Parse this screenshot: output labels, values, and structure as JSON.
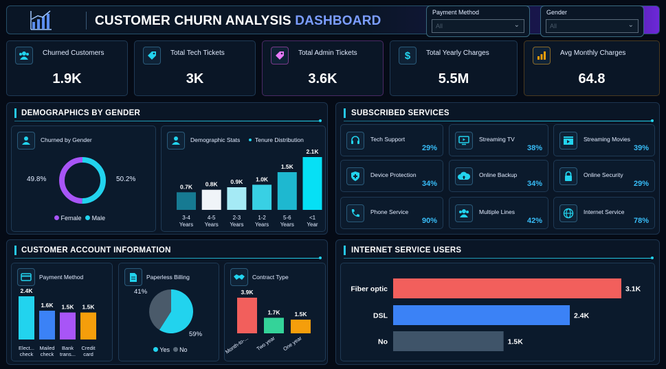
{
  "header": {
    "title_main": "CUSTOMER CHURN ANALYSIS",
    "title_accent": "DASHBOARD",
    "icon": "chart-growth-icon",
    "slicers": [
      {
        "label": "Payment Method",
        "value": "All"
      },
      {
        "label": "Gender",
        "value": "All"
      }
    ]
  },
  "kpis": [
    {
      "label": "Churned Customers",
      "value": "1.9K",
      "icon": "users-icon",
      "accent": "#22d3ee"
    },
    {
      "label": "Total Tech Tickets",
      "value": "3K",
      "icon": "tag-icon",
      "accent": "#22d3ee"
    },
    {
      "label": "Total Admin Tickets",
      "value": "3.6K",
      "icon": "tag-icon",
      "accent": "#e879f9"
    },
    {
      "label": "Total Yearly Charges",
      "value": "5.5M",
      "icon": "dollar-icon",
      "accent": "#22d3ee"
    },
    {
      "label": "Avg Monthly Charges",
      "value": "64.8",
      "icon": "bar-chart-icon",
      "accent": "#f59e0b"
    }
  ],
  "demographics": {
    "title": "DEMOGRAPHICS BY GENDER",
    "gender_card": {
      "title": "Churned by Gender",
      "female_pct": "49.8%",
      "male_pct": "50.2%",
      "legend": [
        "Female",
        "Male"
      ],
      "colors": {
        "female": "#a855f7",
        "male": "#22d3ee"
      }
    },
    "tenure_card": {
      "title": "Demographic Stats",
      "subtitle": "Tenure Distribution"
    }
  },
  "services": {
    "title": "SUBSCRIBED SERVICES",
    "items": [
      {
        "name": "Tech Support",
        "pct": "29%",
        "icon": "headset-icon"
      },
      {
        "name": "Streaming TV",
        "pct": "38%",
        "icon": "tv-icon"
      },
      {
        "name": "Streaming Movies",
        "pct": "39%",
        "icon": "film-icon"
      },
      {
        "name": "Device Protection",
        "pct": "34%",
        "icon": "shield-icon"
      },
      {
        "name": "Online Backup",
        "pct": "34%",
        "icon": "cloud-upload-icon"
      },
      {
        "name": "Online Security",
        "pct": "29%",
        "icon": "lock-icon"
      },
      {
        "name": "Phone Service",
        "pct": "90%",
        "icon": "phone-icon"
      },
      {
        "name": "Multiple Lines",
        "pct": "42%",
        "icon": "users-icon"
      },
      {
        "name": "Internet Service",
        "pct": "78%",
        "icon": "globe-icon"
      }
    ]
  },
  "account": {
    "title": "CUSTOMER ACCOUNT INFORMATION",
    "payment_card": {
      "title": "Payment Method"
    },
    "billing_card": {
      "title": "Paperless Billing",
      "yes_pct": "59%",
      "no_pct": "41%",
      "legend": [
        "Yes",
        "No"
      ]
    },
    "contract_card": {
      "title": "Contract Type"
    }
  },
  "internet": {
    "title": "INTERNET SERVICE USERS"
  },
  "chart_data": [
    {
      "type": "bar",
      "name": "tenure",
      "categories": [
        "3-4 Years",
        "4-5 Years",
        "2-3 Years",
        "1-2 Years",
        "5-6 Years",
        "<1 Year"
      ],
      "values": [
        0.7,
        0.8,
        0.9,
        1.0,
        1.5,
        2.1
      ],
      "labels": [
        "0.7K",
        "0.8K",
        "0.9K",
        "1.0K",
        "1.5K",
        "2.1K"
      ],
      "colors": [
        "#167a92",
        "#f0f4f8",
        "#a5eaf5",
        "#38d0e4",
        "#1eb8d0",
        "#06e0f5"
      ]
    },
    {
      "type": "pie",
      "name": "gender",
      "categories": [
        "Female",
        "Male"
      ],
      "values": [
        49.8,
        50.2
      ]
    },
    {
      "type": "bar",
      "name": "payment",
      "categories": [
        "Elect... check",
        "Mailed check",
        "Bank trans...",
        "Credit card"
      ],
      "values": [
        2.4,
        1.6,
        1.5,
        1.5
      ],
      "labels": [
        "2.4K",
        "1.6K",
        "1.5K",
        "1.5K"
      ],
      "colors": [
        "#22d3ee",
        "#3b82f6",
        "#a855f7",
        "#f59e0b"
      ]
    },
    {
      "type": "pie",
      "name": "billing",
      "categories": [
        "Yes",
        "No"
      ],
      "values": [
        59,
        41
      ]
    },
    {
      "type": "bar",
      "name": "contract",
      "categories": [
        "Month-to-...",
        "Two year",
        "One year"
      ],
      "values": [
        3.9,
        1.7,
        1.5
      ],
      "labels": [
        "3.9K",
        "1.7K",
        "1.5K"
      ],
      "colors": [
        "#f25f5c",
        "#34d399",
        "#f59e0b"
      ]
    },
    {
      "type": "bar",
      "name": "internet",
      "orientation": "horizontal",
      "categories": [
        "Fiber optic",
        "DSL",
        "No"
      ],
      "values": [
        3.1,
        2.4,
        1.5
      ],
      "labels": [
        "3.1K",
        "2.4K",
        "1.5K"
      ],
      "colors": [
        "#f25f5c",
        "#3b82f6",
        "#3f5469"
      ]
    }
  ]
}
